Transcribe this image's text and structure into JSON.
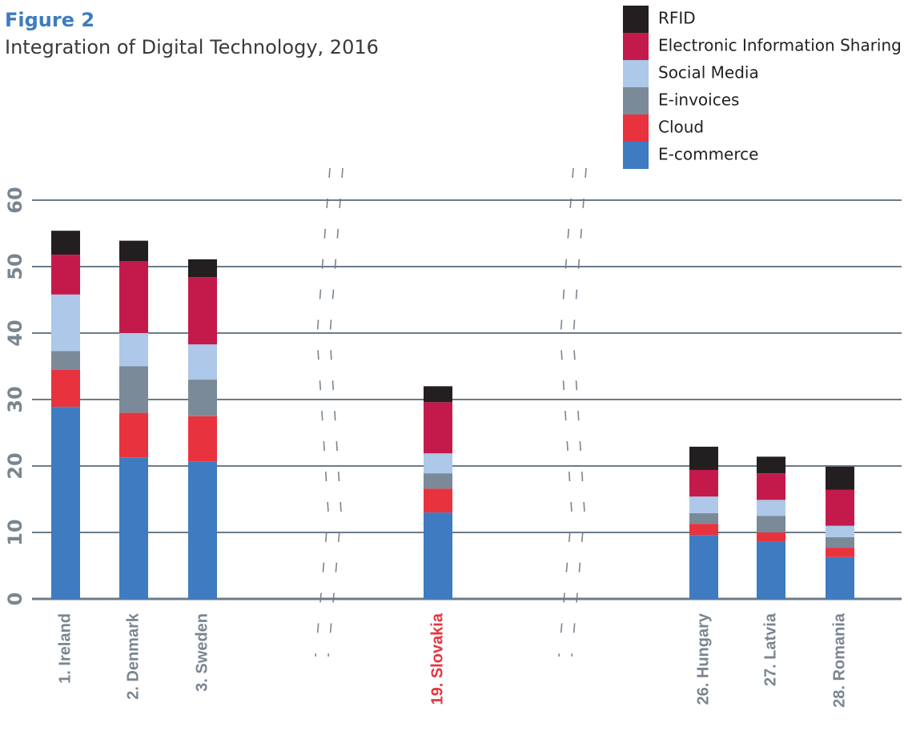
{
  "chart_data": {
    "type": "stacked_bar",
    "title": "Figure 2",
    "subtitle": "Integration of Digital Technology, 2016",
    "categories": [
      "1. Ireland",
      "2. Denmark",
      "3. Sweden",
      "19. Slovakia",
      "26. Hungary",
      "27. Latvia",
      "28. Romania"
    ],
    "series": [
      {
        "name": "E-commerce",
        "color": "#3f7bc0",
        "values": [
          28.9,
          21.3,
          20.7,
          13.0,
          9.6,
          8.6,
          6.3
        ]
      },
      {
        "name": "Cloud",
        "color": "#e8333f",
        "values": [
          5.6,
          6.7,
          6.8,
          3.6,
          1.7,
          1.4,
          1.4
        ]
      },
      {
        "name": "E-invoices",
        "color": "#7a8a99",
        "values": [
          2.8,
          7.0,
          5.5,
          2.3,
          1.6,
          2.5,
          1.6
        ]
      },
      {
        "name": "Social Media",
        "color": "#adc8e8",
        "values": [
          8.5,
          5.0,
          5.3,
          3.0,
          2.5,
          2.4,
          1.7
        ]
      },
      {
        "name": "Electronic Information Sharing",
        "color": "#c41a4b",
        "values": [
          6.0,
          10.8,
          10.1,
          7.7,
          4.0,
          4.0,
          5.4
        ]
      },
      {
        "name": "RFID",
        "color": "#231f20",
        "values": [
          3.6,
          3.1,
          2.7,
          2.4,
          3.5,
          2.5,
          3.5
        ]
      }
    ],
    "ylim": [
      0,
      60
    ],
    "yticks": [
      0,
      10,
      20,
      30,
      40,
      50,
      60
    ],
    "grid": true
  }
}
